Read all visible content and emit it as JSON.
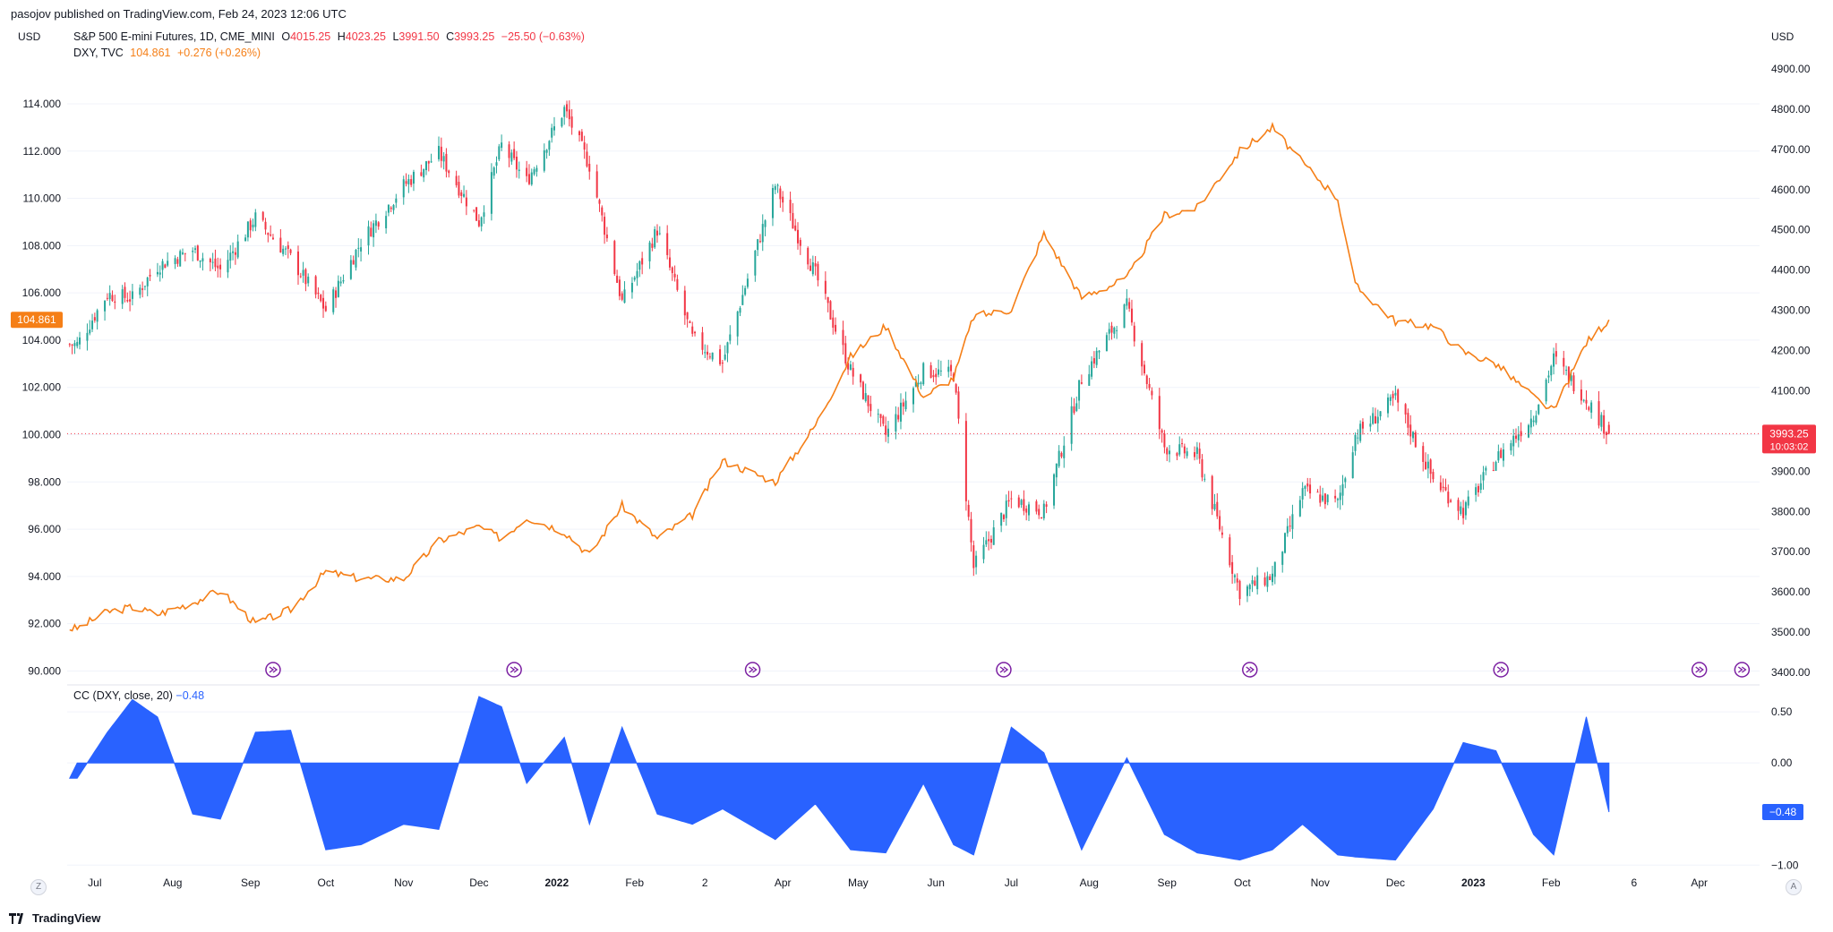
{
  "header": {
    "published": "pasojov published on TradingView.com, Feb 24, 2023 12:06 UTC"
  },
  "legend": {
    "main": {
      "symbol": "S&P 500 E-mini Futures, 1D, CME_MINI",
      "o_label": "O",
      "o_value": "4015.25",
      "h_label": "H",
      "h_value": "4023.25",
      "l_label": "L",
      "l_value": "3991.50",
      "c_label": "C",
      "c_value": "3993.25",
      "change": "−25.50 (−0.63%)"
    },
    "dxy": {
      "symbol": "DXY, TVC",
      "value": "104.861",
      "change": "+0.276 (+0.26%)"
    },
    "indicator": {
      "label": "CC (DXY, close, 20)",
      "value": "−0.48"
    }
  },
  "axes": {
    "left_unit": "USD",
    "right_unit": "USD",
    "left_ticks": [
      "90.000",
      "92.000",
      "94.000",
      "96.000",
      "98.000",
      "100.000",
      "102.000",
      "104.000",
      "106.000",
      "108.000",
      "110.000",
      "112.000",
      "114.000"
    ],
    "right_ticks": [
      "3400.00",
      "3500.00",
      "3600.00",
      "3700.00",
      "3800.00",
      "3900.00",
      "4000.00",
      "4100.00",
      "4200.00",
      "4300.00",
      "4400.00",
      "4500.00",
      "4600.00",
      "4700.00",
      "4800.00",
      "4900.00"
    ],
    "ind_ticks": [
      "0.50",
      "0.00",
      "−1.00"
    ],
    "x_labels": [
      "Jul",
      "Aug",
      "Sep",
      "Oct",
      "Nov",
      "Dec",
      "2022",
      "Feb",
      "2",
      "Apr",
      "May",
      "Jun",
      "Jul",
      "Aug",
      "Sep",
      "Oct",
      "Nov",
      "Dec",
      "2023",
      "Feb",
      "6",
      "Apr"
    ],
    "price_badge_left": "104.861",
    "price_badge_right": "3993.25",
    "price_badge_timer": "10:03:02",
    "ind_badge": "−0.48",
    "corner_left": "Z",
    "corner_right": "A"
  },
  "footer": {
    "brand": "TradingView"
  },
  "colors": {
    "up": "#26a69a",
    "down": "#f23645",
    "dxy": "#f57f17",
    "cc": "#2962ff",
    "event": "#7b1fa2"
  },
  "chart_data": [
    {
      "type": "candlestick+line",
      "title": "S&P 500 E-mini Futures, 1D, CME_MINI",
      "x_range": [
        "2021-06",
        "2023-04"
      ],
      "series": [
        {
          "name": "S&P 500 E-mini Futures",
          "axis": "right",
          "ylim": [
            3380,
            4960
          ],
          "dates": [
            "2021-06-24",
            "2021-07-06",
            "2021-07-16",
            "2021-07-26",
            "2021-08-09",
            "2021-08-20",
            "2021-09-03",
            "2021-09-17",
            "2021-10-01",
            "2021-10-15",
            "2021-11-01",
            "2021-11-15",
            "2021-12-01",
            "2021-12-10",
            "2021-12-20",
            "2022-01-04",
            "2022-01-14",
            "2022-01-27",
            "2022-02-10",
            "2022-02-24",
            "2022-03-08",
            "2022-03-29",
            "2022-04-14",
            "2022-04-28",
            "2022-05-12",
            "2022-05-27",
            "2022-06-08",
            "2022-06-16",
            "2022-07-01",
            "2022-07-14",
            "2022-07-29",
            "2022-08-16",
            "2022-08-31",
            "2022-09-13",
            "2022-09-30",
            "2022-10-13",
            "2022-10-25",
            "2022-11-08",
            "2022-11-15",
            "2022-12-01",
            "2022-12-16",
            "2022-12-28",
            "2023-01-10",
            "2023-01-25",
            "2023-02-02",
            "2023-02-15",
            "2023-02-24"
          ],
          "close": [
            4215,
            4340,
            4330,
            4410,
            4450,
            4400,
            4530,
            4430,
            4300,
            4470,
            4610,
            4690,
            4520,
            4710,
            4620,
            4800,
            4660,
            4320,
            4500,
            4230,
            4170,
            4610,
            4390,
            4150,
            3990,
            4150,
            4140,
            3660,
            3830,
            3800,
            4130,
            4310,
            3960,
            3940,
            3600,
            3640,
            3850,
            3820,
            3990,
            4080,
            3880,
            3800,
            3930,
            4040,
            4180,
            4080,
            3993.25
          ],
          "last": {
            "open": 4015.25,
            "high": 4023.25,
            "low": 3991.5,
            "close": 3993.25
          }
        },
        {
          "name": "DXY, TVC",
          "axis": "left",
          "ylim": [
            89.6,
            116.5
          ],
          "dates": [
            "2021-06-24",
            "2021-07-06",
            "2021-07-16",
            "2021-07-26",
            "2021-08-09",
            "2021-08-20",
            "2021-09-03",
            "2021-09-17",
            "2021-10-01",
            "2021-10-15",
            "2021-11-01",
            "2021-11-15",
            "2021-12-01",
            "2021-12-10",
            "2021-12-20",
            "2022-01-04",
            "2022-01-14",
            "2022-01-27",
            "2022-02-10",
            "2022-02-24",
            "2022-03-08",
            "2022-03-29",
            "2022-04-14",
            "2022-04-28",
            "2022-05-12",
            "2022-05-27",
            "2022-06-08",
            "2022-06-16",
            "2022-07-01",
            "2022-07-14",
            "2022-07-29",
            "2022-08-16",
            "2022-08-31",
            "2022-09-13",
            "2022-09-30",
            "2022-10-13",
            "2022-10-25",
            "2022-11-08",
            "2022-11-15",
            "2022-12-01",
            "2022-12-16",
            "2022-12-28",
            "2023-01-10",
            "2023-01-25",
            "2023-02-02",
            "2023-02-15",
            "2023-02-24"
          ],
          "values": [
            91.8,
            92.5,
            92.7,
            92.4,
            92.9,
            93.4,
            92.0,
            92.6,
            94.2,
            93.9,
            93.9,
            95.5,
            96.1,
            95.6,
            96.5,
            95.9,
            94.9,
            97.0,
            95.6,
            96.6,
            98.9,
            98.0,
            100.4,
            103.3,
            104.6,
            101.6,
            102.4,
            105.0,
            105.3,
            108.5,
            105.8,
            106.6,
            109.3,
            109.6,
            112.0,
            113.0,
            111.5,
            110.0,
            106.3,
            104.8,
            104.6,
            103.5,
            103.0,
            101.6,
            101.0,
            103.9,
            104.861
          ]
        }
      ],
      "events_count": 8
    },
    {
      "type": "area",
      "title": "CC (DXY, close, 20)",
      "ylim": [
        -1.12,
        0.72
      ],
      "dates": [
        "2021-06-24",
        "2021-07-06",
        "2021-07-16",
        "2021-07-26",
        "2021-08-09",
        "2021-08-20",
        "2021-09-03",
        "2021-09-17",
        "2021-10-01",
        "2021-10-15",
        "2021-11-01",
        "2021-11-15",
        "2021-12-01",
        "2021-12-10",
        "2021-12-20",
        "2022-01-04",
        "2022-01-14",
        "2022-01-27",
        "2022-02-10",
        "2022-02-24",
        "2022-03-08",
        "2022-03-29",
        "2022-04-14",
        "2022-04-28",
        "2022-05-12",
        "2022-05-27",
        "2022-06-08",
        "2022-06-16",
        "2022-07-01",
        "2022-07-14",
        "2022-07-29",
        "2022-08-16",
        "2022-08-31",
        "2022-09-13",
        "2022-09-30",
        "2022-10-13",
        "2022-10-25",
        "2022-11-08",
        "2022-11-15",
        "2022-12-01",
        "2022-12-16",
        "2022-12-28",
        "2023-01-10",
        "2023-01-25",
        "2023-02-02",
        "2023-02-15",
        "2023-02-24"
      ],
      "values": [
        -0.15,
        0.3,
        0.62,
        0.45,
        -0.5,
        -0.55,
        0.3,
        0.32,
        -0.85,
        -0.8,
        -0.6,
        -0.65,
        0.65,
        0.55,
        -0.2,
        0.25,
        -0.6,
        0.35,
        -0.5,
        -0.6,
        -0.45,
        -0.75,
        -0.4,
        -0.85,
        -0.88,
        -0.2,
        -0.8,
        -0.9,
        0.35,
        0.1,
        -0.85,
        0.05,
        -0.7,
        -0.88,
        -0.95,
        -0.85,
        -0.6,
        -0.9,
        -0.92,
        -0.95,
        -0.45,
        0.2,
        0.12,
        -0.7,
        -0.9,
        0.45,
        -0.48
      ]
    }
  ]
}
